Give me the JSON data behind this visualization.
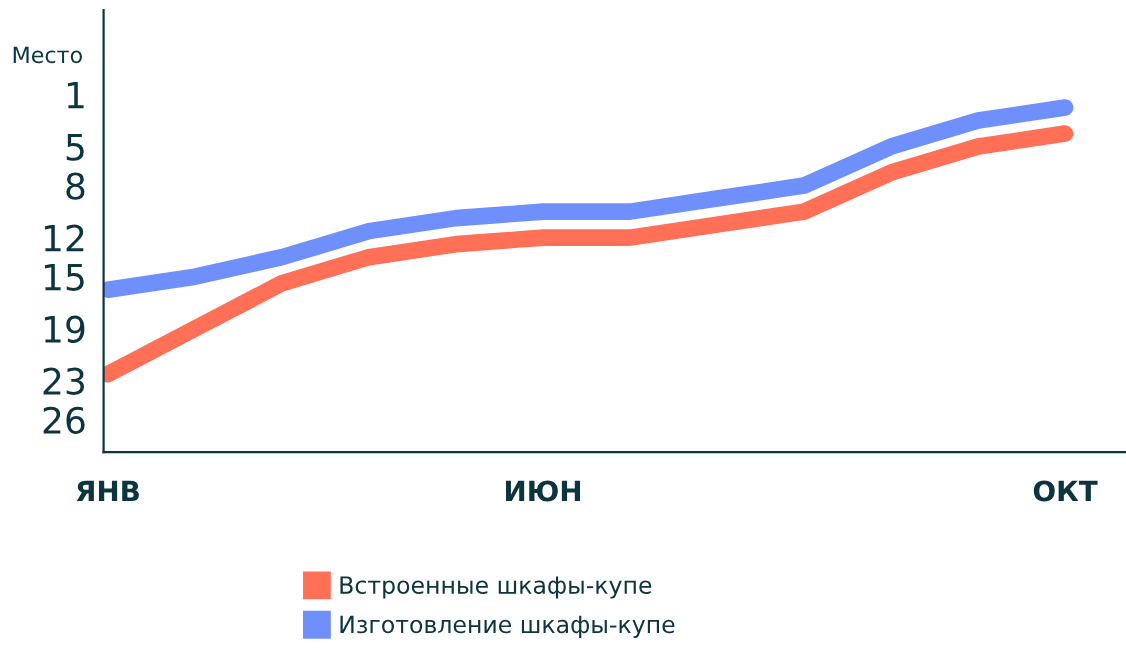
{
  "chart_data": {
    "type": "line",
    "ylabel": "Место",
    "categories": [
      "ЯНВ",
      null,
      null,
      null,
      null,
      "ИЮН",
      null,
      null,
      null,
      null,
      null,
      "ОКТ"
    ],
    "series": [
      {
        "name": "Встроенные шкафы-купе",
        "color": "#ff7057",
        "values": [
          22.5,
          19,
          15.5,
          13.5,
          12.5,
          12,
          12,
          11,
          10,
          7,
          5,
          4
        ]
      },
      {
        "name": "Изготовление шкафы-купе",
        "color": "#6f8ffc",
        "values": [
          16,
          15,
          13.5,
          11.5,
          10.5,
          10,
          10,
          9,
          8,
          5,
          3,
          2
        ]
      }
    ],
    "ylim": [
      28.5,
      -5.5
    ],
    "yticks": [
      1,
      5,
      8,
      12,
      15,
      19,
      23,
      26
    ],
    "grid": false,
    "legend": "bottom",
    "marker": "none",
    "line_style": "solid"
  }
}
